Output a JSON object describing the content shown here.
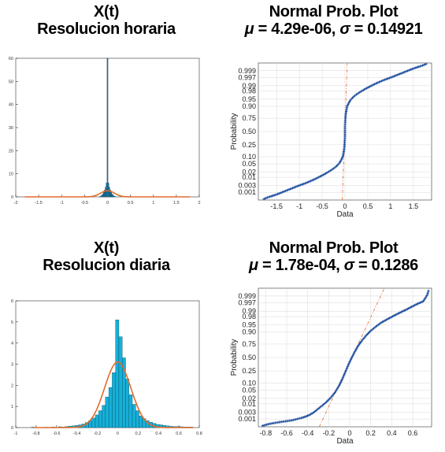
{
  "chart_data": [
    {
      "id": "hist_hourly",
      "type": "bar",
      "title_line1": "X(t)",
      "title_line2": "Resolucion horaria",
      "xlim": [
        -2,
        2
      ],
      "ylim": [
        0,
        60
      ],
      "xticks": [
        "-2",
        "-1.5",
        "-1",
        "-0.5",
        "0",
        "0.5",
        "1",
        "1.5",
        "2"
      ],
      "xtick_values": [
        -2,
        -1.5,
        -1,
        -0.5,
        0,
        0.5,
        1,
        1.5,
        2
      ],
      "yticks": [
        "0",
        "10",
        "20",
        "30",
        "40",
        "50",
        "60"
      ],
      "ytick_values": [
        0,
        10,
        20,
        30,
        40,
        50,
        60
      ],
      "bin_width": 0.02,
      "bins_x": [
        -0.16,
        -0.14,
        -0.12,
        -0.1,
        -0.08,
        -0.06,
        -0.04,
        -0.02,
        0.0,
        0.02,
        0.04,
        0.06,
        0.08,
        0.1,
        0.12,
        0.14,
        0.16
      ],
      "bins_y": [
        0.2,
        0.4,
        0.8,
        1.3,
        2.0,
        3.0,
        4.2,
        6.0,
        60.0,
        6.0,
        4.2,
        3.0,
        2.0,
        1.3,
        0.8,
        0.4,
        0.2
      ],
      "normal_fit": {
        "mu": 4.29e-06,
        "sigma": 0.14921,
        "x_range": [
          -1.8,
          1.8
        ]
      },
      "colors": {
        "bars": "#1a7fa8",
        "curve": "#e46a2a"
      }
    },
    {
      "id": "probplot_hourly",
      "type": "scatter",
      "title_line1": "Normal Prob. Plot",
      "title_prefix_mu": "μ",
      "title_mid": " = 4.29e-06, ",
      "title_prefix_sigma": "σ",
      "title_suffix": " = 0.14921",
      "xlabel": "Data",
      "ylabel": "Probability",
      "xlim": [
        -1.9,
        1.9
      ],
      "xticks": [
        "-1.5",
        "-1",
        "-0.5",
        "0",
        "0.5",
        "1",
        "1.5"
      ],
      "xtick_values": [
        -1.5,
        -1,
        -0.5,
        0,
        0.5,
        1,
        1.5
      ],
      "yticks": [
        "0.001",
        "0.003",
        "0.01",
        "0.02",
        "0.05",
        "0.10",
        "0.25",
        "0.50",
        "0.75",
        "0.90",
        "0.95",
        "0.98",
        "0.99",
        "0.997",
        "0.999"
      ],
      "ytick_values": [
        0.001,
        0.003,
        0.01,
        0.02,
        0.05,
        0.1,
        0.25,
        0.5,
        0.75,
        0.9,
        0.95,
        0.98,
        0.99,
        0.997,
        0.999
      ],
      "points": [
        [
          -1.78,
          0.0003
        ],
        [
          -1.7,
          0.0004
        ],
        [
          -1.62,
          0.0005
        ],
        [
          -1.55,
          0.0006
        ],
        [
          -1.45,
          0.0008
        ],
        [
          -1.35,
          0.0011
        ],
        [
          -1.25,
          0.0015
        ],
        [
          -1.15,
          0.002
        ],
        [
          -1.05,
          0.0027
        ],
        [
          -0.95,
          0.0035
        ],
        [
          -0.85,
          0.0045
        ],
        [
          -0.75,
          0.006
        ],
        [
          -0.65,
          0.008
        ],
        [
          -0.55,
          0.011
        ],
        [
          -0.45,
          0.015
        ],
        [
          -0.35,
          0.021
        ],
        [
          -0.25,
          0.03
        ],
        [
          -0.18,
          0.04
        ],
        [
          -0.12,
          0.055
        ],
        [
          -0.08,
          0.075
        ],
        [
          -0.05,
          0.1
        ],
        [
          -0.03,
          0.14
        ],
        [
          -0.015,
          0.2
        ],
        [
          -0.006,
          0.3
        ],
        [
          0,
          0.4
        ],
        [
          0,
          0.5
        ],
        [
          0,
          0.6
        ],
        [
          0.006,
          0.7
        ],
        [
          0.015,
          0.8
        ],
        [
          0.03,
          0.86
        ],
        [
          0.05,
          0.9
        ],
        [
          0.08,
          0.925
        ],
        [
          0.12,
          0.945
        ],
        [
          0.18,
          0.96
        ],
        [
          0.25,
          0.97
        ],
        [
          0.35,
          0.979
        ],
        [
          0.45,
          0.985
        ],
        [
          0.55,
          0.989
        ],
        [
          0.65,
          0.992
        ],
        [
          0.75,
          0.994
        ],
        [
          0.85,
          0.9955
        ],
        [
          0.95,
          0.9965
        ],
        [
          1.05,
          0.9973
        ],
        [
          1.15,
          0.998
        ],
        [
          1.25,
          0.9985
        ],
        [
          1.35,
          0.9989
        ],
        [
          1.45,
          0.9992
        ],
        [
          1.55,
          0.9994
        ],
        [
          1.62,
          0.9995
        ],
        [
          1.7,
          0.9996
        ],
        [
          1.78,
          0.9997
        ]
      ],
      "colors": {
        "points": "#1f4fa0",
        "ref": "#e46a2a"
      }
    },
    {
      "id": "hist_daily",
      "type": "bar",
      "title_line1": "X(t)",
      "title_line2": "Resolucion diaria",
      "xlim": [
        -1,
        0.8
      ],
      "ylim": [
        0,
        6
      ],
      "xticks": [
        "-1",
        "-0.8",
        "-0.6",
        "-0.4",
        "-0.2",
        "0",
        "0.2",
        "0.4",
        "0.6",
        "0.8"
      ],
      "xtick_values": [
        -1,
        -0.8,
        -0.6,
        -0.4,
        -0.2,
        0,
        0.2,
        0.4,
        0.6,
        0.8
      ],
      "yticks": [
        "0",
        "1",
        "2",
        "3",
        "4",
        "5",
        "6"
      ],
      "ytick_values": [
        0,
        1,
        2,
        3,
        4,
        5,
        6
      ],
      "bin_width": 0.033,
      "bins_x": [
        -0.83,
        -0.797,
        -0.764,
        -0.731,
        -0.698,
        -0.665,
        -0.632,
        -0.599,
        -0.566,
        -0.533,
        -0.5,
        -0.467,
        -0.434,
        -0.401,
        -0.368,
        -0.335,
        -0.302,
        -0.269,
        -0.236,
        -0.203,
        -0.17,
        -0.137,
        -0.104,
        -0.071,
        -0.038,
        -0.005,
        0.028,
        0.061,
        0.094,
        0.127,
        0.16,
        0.193,
        0.226,
        0.259,
        0.292,
        0.325,
        0.358,
        0.391,
        0.424,
        0.457,
        0.49,
        0.523,
        0.556,
        0.589,
        0.622,
        0.655,
        0.688,
        0.721
      ],
      "bins_y": [
        0.02,
        0,
        0,
        0,
        0.02,
        0,
        0.03,
        0,
        0.04,
        0.03,
        0.05,
        0.07,
        0.08,
        0.1,
        0.13,
        0.17,
        0.24,
        0.33,
        0.45,
        0.6,
        0.8,
        1.05,
        1.45,
        1.9,
        2.6,
        5.1,
        4.3,
        3.3,
        2.3,
        1.55,
        1.1,
        0.8,
        0.55,
        0.42,
        0.33,
        0.25,
        0.2,
        0.15,
        0.13,
        0.1,
        0.08,
        0.06,
        0.05,
        0.05,
        0.04,
        0.03,
        0.03,
        0.03
      ],
      "normal_fit": {
        "mu": 0.000178,
        "sigma": 0.1286,
        "x_range": [
          -0.83,
          0.74
        ]
      },
      "colors": {
        "bars": "#15b0d8",
        "curve": "#e46a2a"
      }
    },
    {
      "id": "probplot_daily",
      "type": "scatter",
      "title_line1": "Normal Prob. Plot",
      "title_prefix_mu": "μ",
      "title_mid": " = 1.78e-04, ",
      "title_prefix_sigma": "σ",
      "title_suffix": " = 0.1286",
      "xlabel": "Data",
      "ylabel": "Probability",
      "xlim": [
        -0.87,
        0.78
      ],
      "xticks": [
        "-0.8",
        "-0.6",
        "-0.4",
        "-0.2",
        "0",
        "0.2",
        "0.4",
        "0.6"
      ],
      "xtick_values": [
        -0.8,
        -0.6,
        -0.4,
        -0.2,
        0,
        0.2,
        0.4,
        0.6
      ],
      "yticks": [
        "0.001",
        "0.003",
        "0.01",
        "0.02",
        "0.05",
        "0.10",
        "0.25",
        "0.50",
        "0.75",
        "0.90",
        "0.95",
        "0.98",
        "0.99",
        "0.997",
        "0.999"
      ],
      "ytick_values": [
        0.001,
        0.003,
        0.01,
        0.02,
        0.05,
        0.1,
        0.25,
        0.5,
        0.75,
        0.9,
        0.95,
        0.98,
        0.99,
        0.997,
        0.999
      ],
      "points": [
        [
          -0.83,
          0.0003
        ],
        [
          -0.78,
          0.0004
        ],
        [
          -0.72,
          0.0005
        ],
        [
          -0.66,
          0.0006
        ],
        [
          -0.6,
          0.0007
        ],
        [
          -0.55,
          0.0008
        ],
        [
          -0.5,
          0.001
        ],
        [
          -0.46,
          0.0012
        ],
        [
          -0.42,
          0.0015
        ],
        [
          -0.38,
          0.002
        ],
        [
          -0.34,
          0.003
        ],
        [
          -0.3,
          0.005
        ],
        [
          -0.26,
          0.008
        ],
        [
          -0.22,
          0.013
        ],
        [
          -0.18,
          0.022
        ],
        [
          -0.14,
          0.04
        ],
        [
          -0.1,
          0.08
        ],
        [
          -0.07,
          0.14
        ],
        [
          -0.04,
          0.24
        ],
        [
          -0.01,
          0.37
        ],
        [
          0.02,
          0.5
        ],
        [
          0.05,
          0.62
        ],
        [
          0.08,
          0.72
        ],
        [
          0.12,
          0.81
        ],
        [
          0.16,
          0.87
        ],
        [
          0.2,
          0.91
        ],
        [
          0.25,
          0.94
        ],
        [
          0.3,
          0.96
        ],
        [
          0.36,
          0.973
        ],
        [
          0.42,
          0.982
        ],
        [
          0.48,
          0.988
        ],
        [
          0.54,
          0.992
        ],
        [
          0.6,
          0.995
        ],
        [
          0.65,
          0.9966
        ],
        [
          0.7,
          0.9976
        ],
        [
          0.74,
          0.9992
        ],
        [
          0.75,
          0.9996
        ]
      ],
      "colors": {
        "points": "#1f4fa0",
        "ref": "#e46a2a"
      }
    }
  ]
}
